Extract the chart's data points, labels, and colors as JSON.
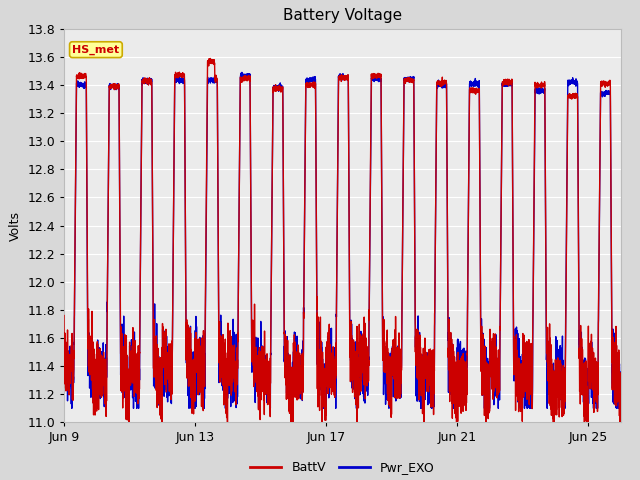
{
  "title": "Battery Voltage",
  "ylabel": "Volts",
  "xlabel": "",
  "ylim": [
    11.0,
    13.8
  ],
  "yticks": [
    11.0,
    11.2,
    11.4,
    11.6,
    11.8,
    12.0,
    12.2,
    12.4,
    12.6,
    12.8,
    13.0,
    13.2,
    13.4,
    13.6,
    13.8
  ],
  "xtick_labels": [
    "Jun 9",
    "Jun 13",
    "Jun 17",
    "Jun 21",
    "Jun 25"
  ],
  "xtick_positions": [
    0,
    4,
    8,
    12,
    16
  ],
  "n_days": 17,
  "legend_labels": [
    "BattV",
    "Pwr_EXO"
  ],
  "batt_color": "#cc0000",
  "exo_color": "#0000cc",
  "fig_bg_color": "#d8d8d8",
  "plot_bg_color": "#ebebeb",
  "annotation_text": "HS_met",
  "annotation_color": "#cc0000",
  "annotation_bg": "#ffff99",
  "annotation_border": "#ccaa00",
  "title_fontsize": 11,
  "axis_fontsize": 9,
  "legend_fontsize": 9,
  "grid_color": "#ffffff",
  "line_width": 1.0
}
